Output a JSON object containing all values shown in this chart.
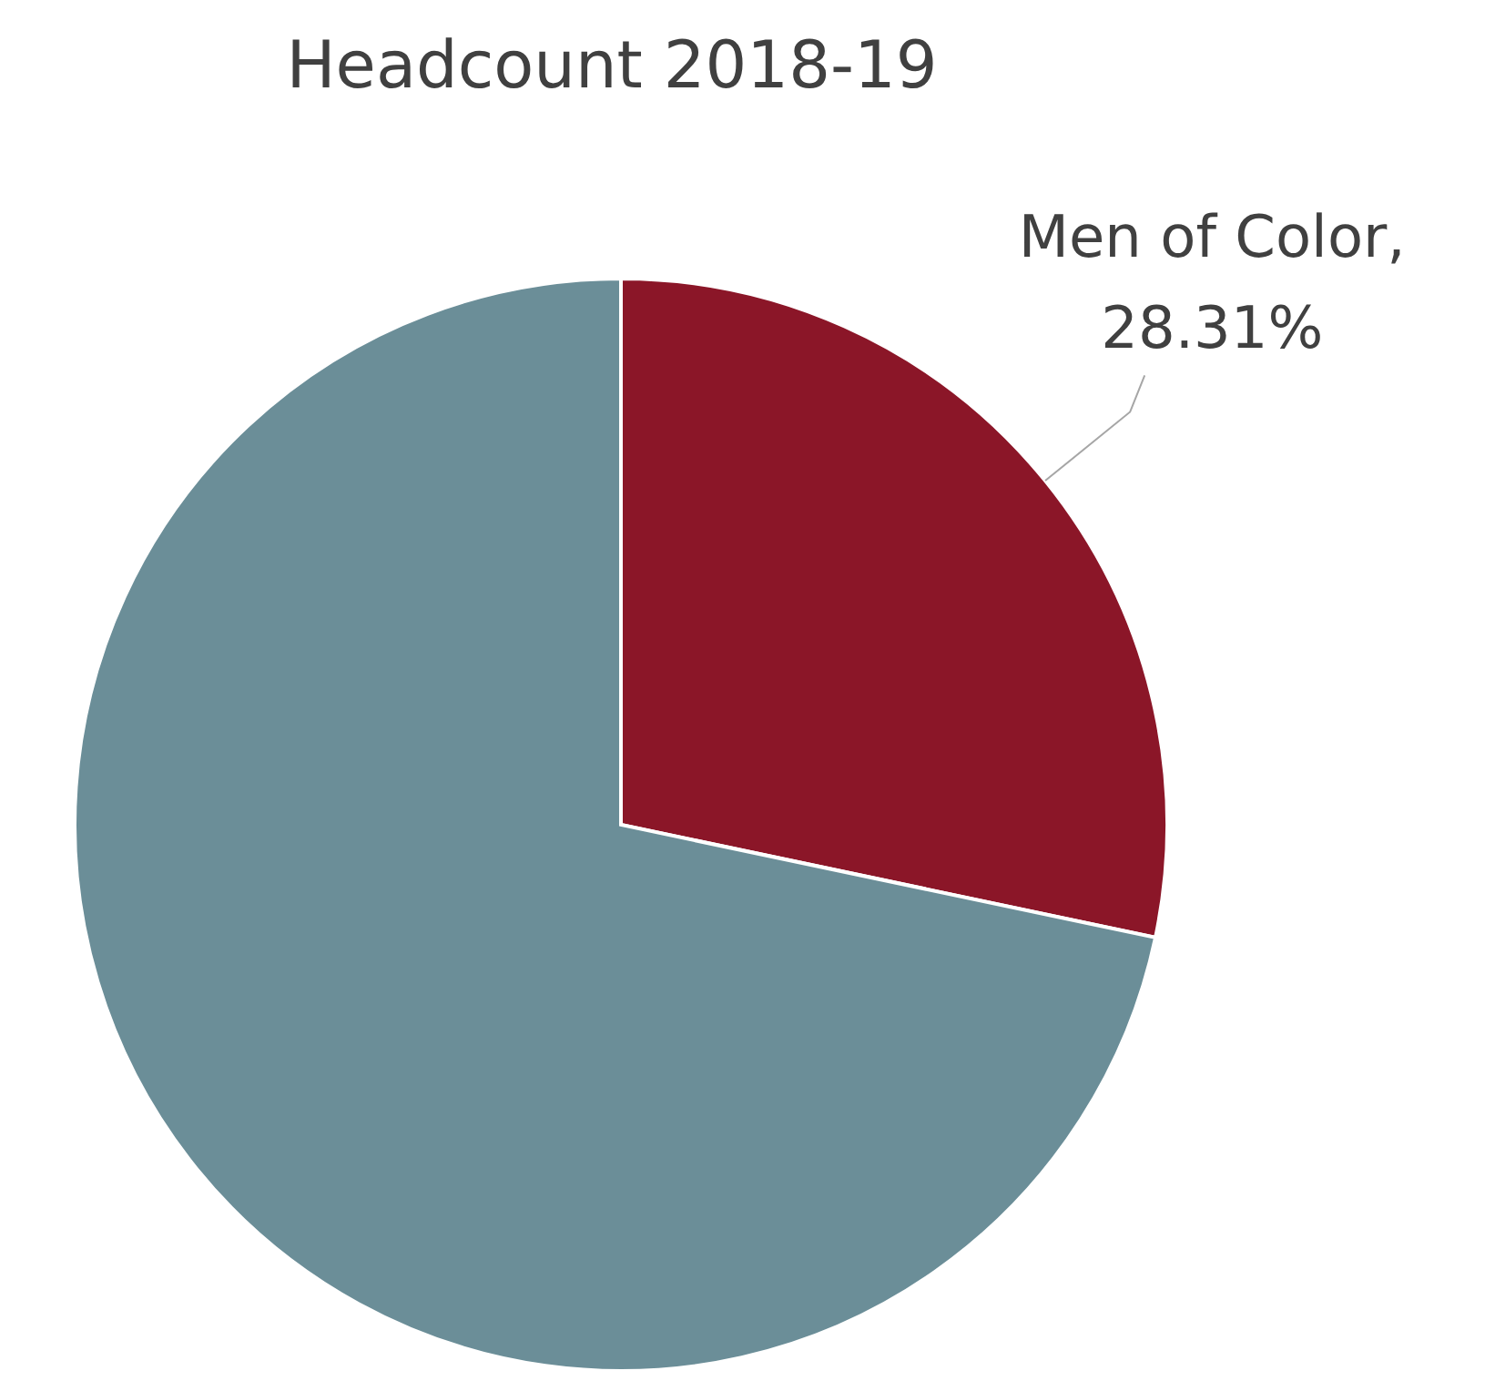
{
  "chart_data": {
    "type": "pie",
    "title": "Headcount 2018-19",
    "categories": [
      "Men of Color",
      null
    ],
    "values": [
      28.31,
      71.69
    ],
    "value_labels": [
      ", 28.31%",
      null
    ],
    "colors": [
      "#8b1628",
      "#6b8e98"
    ]
  }
}
